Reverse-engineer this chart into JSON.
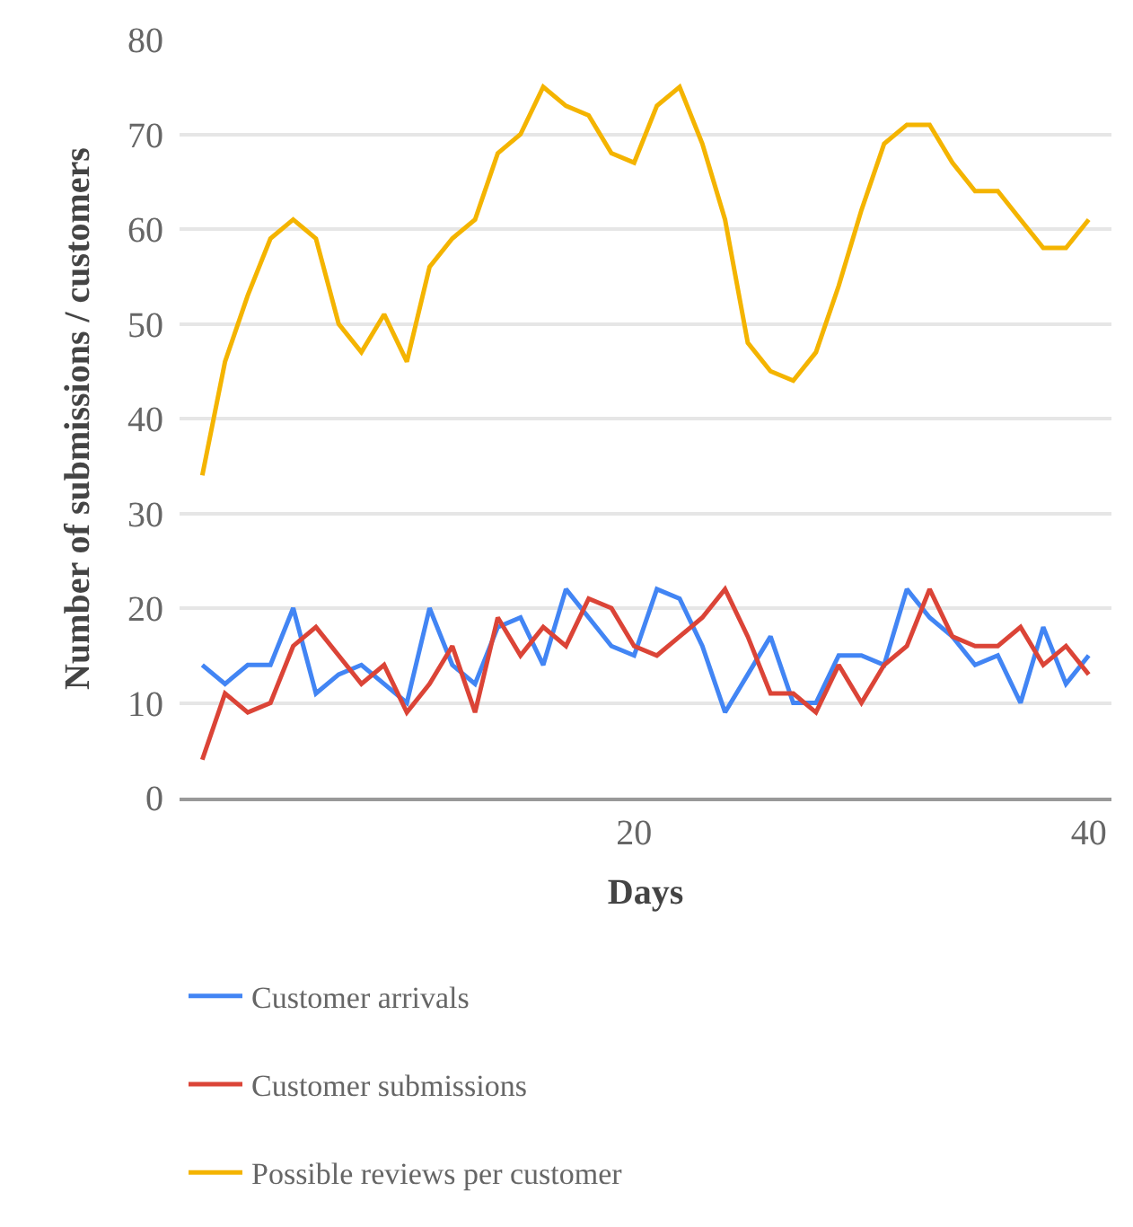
{
  "chart_data": {
    "type": "line",
    "xlabel": "Days",
    "ylabel": "Number of submissions / customers",
    "x": [
      1,
      2,
      3,
      4,
      5,
      6,
      7,
      8,
      9,
      10,
      11,
      12,
      13,
      14,
      15,
      16,
      17,
      18,
      19,
      20,
      21,
      22,
      23,
      24,
      25,
      26,
      27,
      28,
      29,
      30,
      31,
      32,
      33,
      34,
      35,
      36,
      37,
      38,
      39,
      40
    ],
    "series": [
      {
        "name": "Customer arrivals",
        "color": "#4285f4",
        "values": [
          14,
          12,
          14,
          14,
          20,
          11,
          13,
          14,
          12,
          10,
          20,
          14,
          12,
          18,
          19,
          14,
          22,
          19,
          16,
          15,
          22,
          21,
          16,
          9,
          13,
          17,
          10,
          10,
          15,
          15,
          14,
          22,
          19,
          17,
          14,
          15,
          10,
          18,
          12,
          15
        ]
      },
      {
        "name": "Customer submissions",
        "color": "#db4437",
        "values": [
          4,
          11,
          9,
          10,
          16,
          18,
          15,
          12,
          14,
          9,
          12,
          16,
          9,
          19,
          15,
          18,
          16,
          21,
          20,
          16,
          15,
          17,
          19,
          22,
          17,
          11,
          11,
          9,
          14,
          10,
          14,
          16,
          22,
          17,
          16,
          16,
          18,
          14,
          16,
          13
        ]
      },
      {
        "name": "Possible reviews per customer",
        "color": "#f4b400",
        "values": [
          34,
          46,
          53,
          59,
          61,
          59,
          50,
          47,
          51,
          46,
          56,
          59,
          61,
          68,
          70,
          75,
          73,
          72,
          68,
          67,
          73,
          75,
          69,
          61,
          48,
          45,
          44,
          47,
          54,
          62,
          69,
          71,
          71,
          67,
          64,
          64,
          61,
          58,
          58,
          61
        ]
      }
    ],
    "xlim": [
      0,
      41
    ],
    "xticks": [
      20,
      40
    ],
    "ylim": [
      0,
      80
    ],
    "yticks": [
      0,
      10,
      20,
      30,
      40,
      50,
      60,
      70,
      80
    ],
    "grid": "y",
    "legend": "bottom",
    "marker": "none",
    "line_style": "solid"
  }
}
